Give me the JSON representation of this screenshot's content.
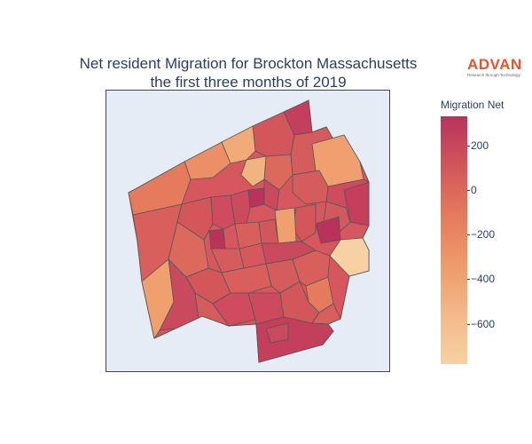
{
  "title": {
    "line1": "Net resident Migration for Brockton Massachusetts",
    "line2": "the first three months of 2019"
  },
  "logo": {
    "word": "ADVAN",
    "tagline": "Research through Technology"
  },
  "colors": {
    "high": "#b8325c",
    "mid": "#e57a5d",
    "low": "#f7d1a3",
    "boundary": "#555555",
    "map_background": "#e5ecf6"
  },
  "colorbar": {
    "title": "Migration Net",
    "min": -780,
    "max": 330,
    "ticks": [
      {
        "value": 200,
        "label": "200"
      },
      {
        "value": 0,
        "label": "0"
      },
      {
        "value": -200,
        "label": "−200"
      },
      {
        "value": -400,
        "label": "−400"
      },
      {
        "value": -600,
        "label": "−600"
      }
    ]
  }
}
